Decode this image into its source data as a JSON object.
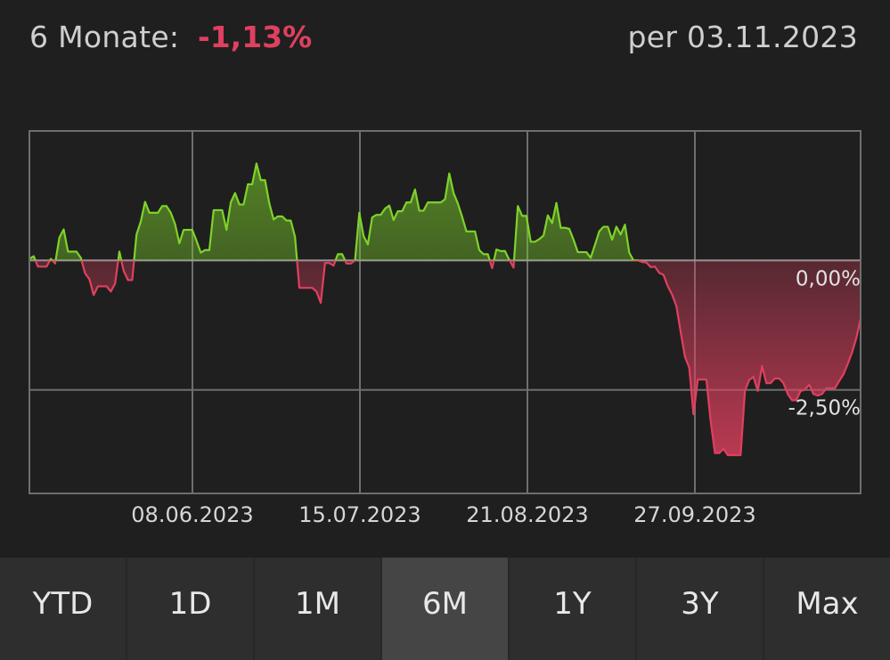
{
  "header": {
    "period_label": "6 Monate:",
    "performance": "-1,13%",
    "as_of": "per 03.11.2023"
  },
  "colors": {
    "positive": "#7ed32a",
    "negative": "#e0405f",
    "grid": "#6e6e6e",
    "background": "#1f1f1f"
  },
  "chart_data": {
    "type": "area",
    "title": "",
    "xlabel": "",
    "ylabel": "",
    "baseline": 0,
    "ylim": [
      -4.5,
      2.5
    ],
    "x_ticks": [
      "08.06.2023",
      "15.07.2023",
      "21.08.2023",
      "27.09.2023"
    ],
    "y_ticks": [
      "0,00%",
      "-2,50%"
    ],
    "grid": true,
    "series": [
      {
        "name": "",
        "values": [
          0.03,
          0.08,
          -0.12,
          -0.12,
          -0.12,
          0.03,
          -0.06,
          0.44,
          0.6,
          0.17,
          0.17,
          0.17,
          0.05,
          -0.25,
          -0.36,
          -0.67,
          -0.5,
          -0.5,
          -0.5,
          -0.6,
          -0.45,
          0.17,
          -0.2,
          -0.38,
          -0.38,
          0.5,
          0.75,
          1.13,
          0.92,
          0.92,
          0.92,
          1.05,
          1.05,
          0.92,
          0.7,
          0.33,
          0.59,
          0.59,
          0.59,
          0.38,
          0.15,
          0.2,
          0.2,
          0.97,
          0.97,
          0.97,
          0.59,
          1.12,
          1.3,
          1.08,
          1.08,
          1.47,
          1.47,
          1.87,
          1.55,
          1.55,
          1.1,
          0.79,
          0.85,
          0.85,
          0.77,
          0.77,
          0.45,
          -0.53,
          -0.53,
          -0.53,
          -0.53,
          -0.6,
          -0.82,
          -0.05,
          -0.05,
          -0.1,
          0.12,
          0.12,
          -0.06,
          -0.06,
          0,
          0.92,
          0.47,
          0.31,
          0.83,
          0.88,
          0.88,
          1.0,
          1.06,
          0.78,
          0.95,
          0.95,
          1.12,
          1.12,
          1.37,
          0.96,
          0.96,
          1.12,
          1.12,
          1.12,
          1.12,
          1.18,
          1.68,
          1.3,
          1.1,
          0.84,
          0.56,
          0.56,
          0.56,
          0.2,
          0.12,
          0.12,
          -0.15,
          0.21,
          0.18,
          0.18,
          0.01,
          -0.14,
          1.05,
          0.86,
          0.86,
          0.36,
          0.36,
          0.41,
          0.48,
          0.87,
          0.72,
          1.11,
          0.63,
          0.63,
          0.61,
          0.4,
          0.16,
          0.16,
          0.16,
          0.05,
          0.3,
          0.56,
          0.65,
          0.65,
          0.4,
          0.65,
          0.5,
          0.69,
          0.15,
          0.0,
          0.0,
          -0.03,
          -0.04,
          -0.13,
          -0.12,
          -0.24,
          -0.28,
          -0.5,
          -0.66,
          -0.88,
          -1.38,
          -1.86,
          -2.07,
          -2.97,
          -2.3,
          -2.3,
          -2.3,
          -3.1,
          -3.72,
          -3.72,
          -3.64,
          -3.76,
          -3.76,
          -3.76,
          -3.76,
          -2.52,
          -2.31,
          -2.25,
          -2.52,
          -2.04,
          -2.37,
          -2.37,
          -2.28,
          -2.28,
          -2.37,
          -2.58,
          -2.7,
          -2.7,
          -2.52,
          -2.5,
          -2.4,
          -2.58,
          -2.61,
          -2.58,
          -2.47,
          -2.47,
          -2.47,
          -2.33,
          -2.2,
          -2.0,
          -1.78,
          -1.5,
          -1.13
        ]
      }
    ]
  },
  "tabs": [
    {
      "label": "YTD",
      "active": false
    },
    {
      "label": "1D",
      "active": false
    },
    {
      "label": "1M",
      "active": false
    },
    {
      "label": "6M",
      "active": true
    },
    {
      "label": "1Y",
      "active": false
    },
    {
      "label": "3Y",
      "active": false
    },
    {
      "label": "Max",
      "active": false
    }
  ]
}
